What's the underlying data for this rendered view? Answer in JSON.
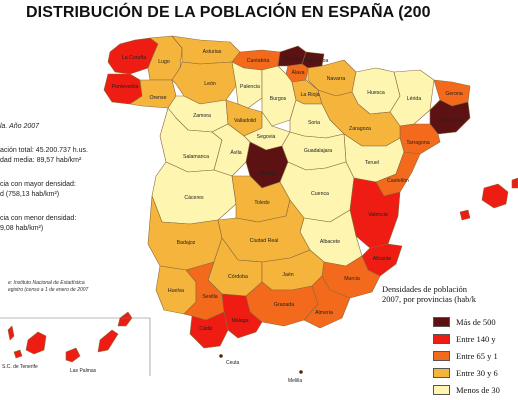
{
  "title": "DISTRIBUCIÓN DE LA POBLACIÓN EN ESPAÑA (200",
  "info": {
    "line1": "la. Año 2007",
    "line2": "ación total: 45.200.737 h.us.",
    "line3": "dad media: 89,57 hab/km²",
    "line4": "cia con mayor densidad:",
    "line5": "d (758,13 hab/km²)",
    "line6": "cia con menor densidad:",
    "line7": "9,08 hab/km²)"
  },
  "source": {
    "line1": "e: Instituto Nacional de Estadística",
    "line2": "egistro (censo a 1 de enero de 2007"
  },
  "legend": {
    "title_line1": "Densidades de población",
    "title_line2": "2007, por provincias (hab/k",
    "items": [
      {
        "label": "Más de 500",
        "color": "#5c1212"
      },
      {
        "label": "Entre 140 y",
        "color": "#ee1c12"
      },
      {
        "label": "Entre 65 y 1",
        "color": "#f46a1c"
      },
      {
        "label": "Entre 30 y 6",
        "color": "#f5b43c"
      },
      {
        "label": "Menos de 30",
        "color": "#fdf5b0"
      }
    ]
  },
  "provinces": {
    "coruna": "La Coruña",
    "lugo": "Lugo",
    "pontevedra": "Pontevedra",
    "orense": "Orense",
    "asturias": "Asturias",
    "cantabria": "Cantabria",
    "vizcaya": "Vizcaya",
    "guipuzcoa": "Guipúzcoa",
    "alava": "Álava",
    "navarra": "Navarra",
    "leon": "León",
    "palencia": "Palencia",
    "burgos": "Burgos",
    "larioja": "La Rioja",
    "huesca": "Huesca",
    "lerida": "Lérida",
    "gerona": "Gerona",
    "barcelona": "Barcelona",
    "tarragona": "Tarragona",
    "zaragoza": "Zaragoza",
    "soria": "Soria",
    "zamora": "Zamora",
    "valladolid": "Valladolid",
    "segovia": "Segovia",
    "salamanca": "Salamanca",
    "avila": "Ávila",
    "madrid": "Madrid",
    "guadalajara": "Guadalajara",
    "teruel": "Teruel",
    "castellon": "Castellón",
    "caceres": "Cáceres",
    "toledo": "Toledo",
    "cuenca": "Cuenca",
    "valencia": "Valencia",
    "badajoz": "Badajoz",
    "ciudadreal": "Ciudad Real",
    "albacete": "Albacete",
    "alicante": "Alicante",
    "murcia": "Murcia",
    "cordoba": "Córdoba",
    "jaen": "Jaén",
    "huelva": "Huelva",
    "sevilla": "Sevilla",
    "granada": "Granada",
    "almeria": "Almería",
    "cadiz": "Cádiz",
    "malaga": "Málaga",
    "ceuta": "Ceuta",
    "melilla": "Melilla",
    "tenerife": "S.C. de Tenerife",
    "laspalmas": "Las Palmas"
  },
  "colors": {
    "very_high": "#5c1212",
    "high": "#ee1c12",
    "medium": "#f46a1c",
    "low": "#f5b43c",
    "very_low": "#fdf5b0",
    "border": "#8a6a3a"
  }
}
